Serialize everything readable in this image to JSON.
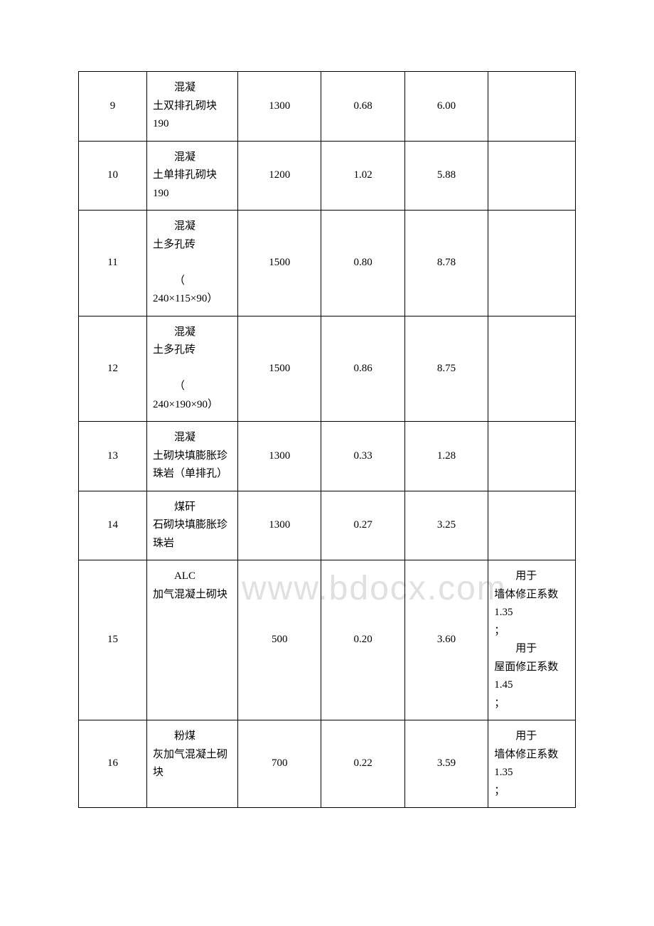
{
  "watermark": "www.bdocx.com",
  "table": {
    "background_color": "#ffffff",
    "border_color": "#000000",
    "text_color": "#000000",
    "font_size": 15,
    "columns": [
      {
        "key": "num",
        "width": 90,
        "align": "center"
      },
      {
        "key": "name",
        "width": 120,
        "align": "left"
      },
      {
        "key": "val1",
        "width": 110,
        "align": "center"
      },
      {
        "key": "val2",
        "width": 110,
        "align": "center"
      },
      {
        "key": "val3",
        "width": 110,
        "align": "center"
      },
      {
        "key": "notes",
        "width": 115,
        "align": "left"
      }
    ],
    "rows": [
      {
        "num": "9",
        "name_indent": "混凝",
        "name_rest": "土双排孔砌块 190",
        "val1": "1300",
        "val2": "0.68",
        "val3": "6.00",
        "notes": ""
      },
      {
        "num": "10",
        "name_indent": "混凝",
        "name_rest": "土单排孔砌块 190",
        "val1": "1200",
        "val2": "1.02",
        "val3": "5.88",
        "notes": ""
      },
      {
        "num": "11",
        "name_indent": "混凝",
        "name_rest": "土多孔砖",
        "name_para2_indent": "（",
        "name_para2_rest": "240×115×90）",
        "val1": "1500",
        "val2": "0.80",
        "val3": "8.78",
        "notes": ""
      },
      {
        "num": "12",
        "name_indent": "混凝",
        "name_rest": "土多孔砖",
        "name_para2_indent": "（",
        "name_para2_rest": "240×190×90）",
        "val1": "1500",
        "val2": "0.86",
        "val3": "8.75",
        "notes": ""
      },
      {
        "num": "13",
        "name_indent": "混凝",
        "name_rest": "土砌块填膨胀珍珠岩（单排孔）",
        "val1": "1300",
        "val2": "0.33",
        "val3": "1.28",
        "notes": ""
      },
      {
        "num": "14",
        "name_indent": "煤矸",
        "name_rest": "石砌块填膨胀珍珠岩",
        "val1": "1300",
        "val2": "0.27",
        "val3": "3.25",
        "notes": ""
      },
      {
        "num": "15",
        "name_indent": "ALC",
        "name_rest": "加气混凝土砌块",
        "val1": "500",
        "val2": "0.20",
        "val3": "3.60",
        "notes_p1_indent": "用于",
        "notes_p1_rest": "墙体修正系数 1.35",
        "notes_p1_punc": "；",
        "notes_p2_indent": "用于",
        "notes_p2_rest": "屋面修正系数 1.45",
        "notes_p2_punc": "；"
      },
      {
        "num": "16",
        "name_indent": "粉煤",
        "name_rest": "灰加气混凝土砌块",
        "val1": "700",
        "val2": "0.22",
        "val3": "3.59",
        "notes_p1_indent": "用于",
        "notes_p1_rest": "墙体修正系数 1.35",
        "notes_p1_punc": "；"
      }
    ]
  }
}
